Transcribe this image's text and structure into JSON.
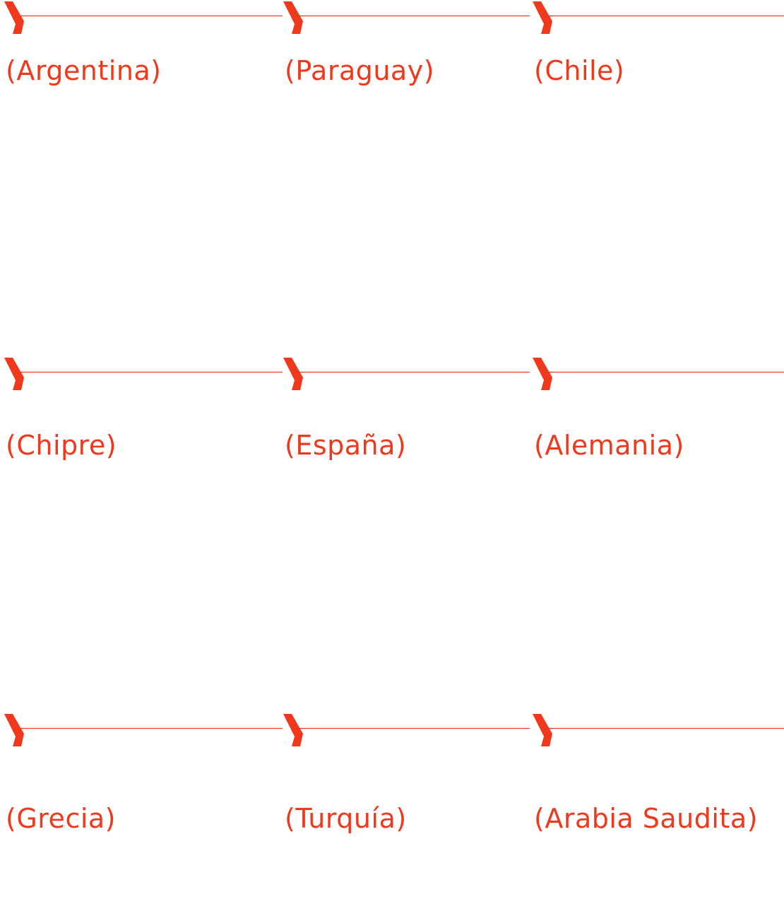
{
  "grid": {
    "rows": [
      [
        "(Argentina)",
        "(Paraguay)",
        "(Chile)"
      ],
      [
        "(Chipre)",
        "(España)",
        "(Alemania)"
      ],
      [
        "(Grecia)",
        "(Turquía)",
        "(Arabia Saudita)"
      ]
    ]
  }
}
